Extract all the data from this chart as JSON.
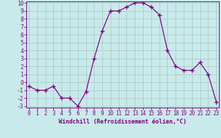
{
  "x": [
    0,
    1,
    2,
    3,
    4,
    5,
    6,
    7,
    8,
    9,
    10,
    11,
    12,
    13,
    14,
    15,
    16,
    17,
    18,
    19,
    20,
    21,
    22,
    23
  ],
  "y": [
    -0.5,
    -1,
    -1,
    -0.5,
    -2,
    -2,
    -3,
    -1.2,
    3,
    6.5,
    9,
    9,
    9.5,
    10,
    10,
    9.5,
    8.5,
    4,
    2,
    1.5,
    1.5,
    2.5,
    1,
    -2.5
  ],
  "line_color": "#800080",
  "marker_color": "#800080",
  "bg_color": "#c8eaea",
  "grid_color": "#b0cece",
  "xlabel": "Windchill (Refroidissement éolien,°C)",
  "tick_color": "#800080",
  "ylim_min": -3,
  "ylim_max": 10,
  "xlim_min": 0,
  "xlim_max": 23,
  "yticks": [
    -3,
    -2,
    -1,
    0,
    1,
    2,
    3,
    4,
    5,
    6,
    7,
    8,
    9,
    10
  ],
  "xticks": [
    0,
    1,
    2,
    3,
    4,
    5,
    6,
    7,
    8,
    9,
    10,
    11,
    12,
    13,
    14,
    15,
    16,
    17,
    18,
    19,
    20,
    21,
    22,
    23
  ],
  "tick_fontsize": 5.5,
  "xlabel_fontsize": 6.0
}
